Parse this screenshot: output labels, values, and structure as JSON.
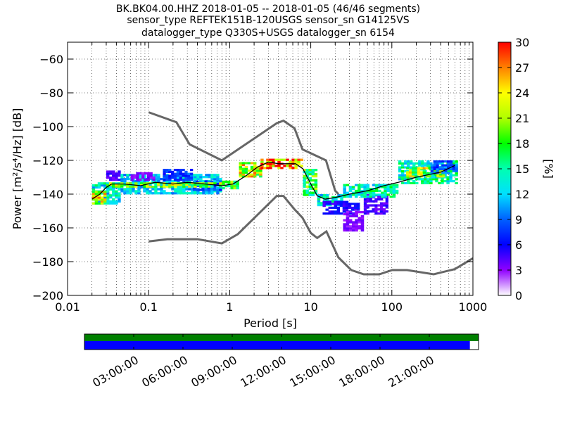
{
  "chart_data": {
    "type": "heatmap",
    "title_lines": [
      "BK.BK04.00.HHZ   2018-01-05 -- 2018-01-05  (46/46 segments)",
      "sensor_type REFTEK151B-120USGS sensor_sn G14125VS",
      "datalogger_type Q330S+USGS datalogger_sn 6154"
    ],
    "xlabel": "Period [s]",
    "ylabel": "Power [m²/s⁴/Hz] [dB]",
    "x_scale": "log",
    "xlim": [
      0.01,
      1000
    ],
    "ylim": [
      -200,
      -50
    ],
    "x_ticks": [
      {
        "value": 0.01,
        "label": "0.01"
      },
      {
        "value": 0.1,
        "label": "0.1"
      },
      {
        "value": 1,
        "label": "1"
      },
      {
        "value": 10,
        "label": "10"
      },
      {
        "value": 100,
        "label": "100"
      },
      {
        "value": 1000,
        "label": "1000"
      }
    ],
    "y_ticks": [
      {
        "value": -60,
        "label": "−60"
      },
      {
        "value": -80,
        "label": "−80"
      },
      {
        "value": -100,
        "label": "−100"
      },
      {
        "value": -120,
        "label": "−120"
      },
      {
        "value": -140,
        "label": "−140"
      },
      {
        "value": -160,
        "label": "−160"
      },
      {
        "value": -180,
        "label": "−180"
      },
      {
        "value": -200,
        "label": "−200"
      }
    ],
    "grid": "dotted",
    "colorbar": {
      "label": "[%]",
      "min": 0,
      "max": 30,
      "ticks": [
        {
          "value": 0,
          "label": "0"
        },
        {
          "value": 3,
          "label": "3"
        },
        {
          "value": 6,
          "label": "6"
        },
        {
          "value": 9,
          "label": "9"
        },
        {
          "value": 12,
          "label": "12"
        },
        {
          "value": 15,
          "label": "15"
        },
        {
          "value": 18,
          "label": "18"
        },
        {
          "value": 21,
          "label": "21"
        },
        {
          "value": 24,
          "label": "24"
        },
        {
          "value": 27,
          "label": "27"
        },
        {
          "value": 30,
          "label": "30"
        }
      ]
    },
    "noise_models": [
      {
        "id": "nhnm",
        "points": [
          [
            0.1,
            -91.5
          ],
          [
            0.22,
            -97.4
          ],
          [
            0.32,
            -110.5
          ],
          [
            0.8,
            -120
          ],
          [
            3.8,
            -98
          ],
          [
            4.6,
            -96.5
          ],
          [
            6.3,
            -101
          ],
          [
            7.9,
            -113.5
          ],
          [
            15.4,
            -120
          ],
          [
            20,
            -138
          ],
          [
            22,
            -140
          ]
        ]
      },
      {
        "id": "nlnm",
        "points": [
          [
            0.1,
            -168
          ],
          [
            0.17,
            -166.7
          ],
          [
            0.4,
            -166.7
          ],
          [
            0.8,
            -169.2
          ],
          [
            1.26,
            -163.7
          ],
          [
            3.8,
            -141.1
          ],
          [
            4.6,
            -141.1
          ],
          [
            6.3,
            -149
          ],
          [
            7.9,
            -154
          ],
          [
            10,
            -163
          ],
          [
            12,
            -166
          ],
          [
            15.6,
            -162.1
          ],
          [
            21.9,
            -177.5
          ],
          [
            31.6,
            -185
          ],
          [
            45,
            -187.5
          ],
          [
            70,
            -187.5
          ],
          [
            101,
            -185
          ],
          [
            154,
            -185
          ],
          [
            328,
            -187.5
          ],
          [
            600,
            -184.4
          ],
          [
            1000,
            -178
          ]
        ]
      }
    ],
    "median_curve": [
      [
        0.02,
        -143
      ],
      [
        0.025,
        -140
      ],
      [
        0.03,
        -136
      ],
      [
        0.035,
        -134
      ],
      [
        0.05,
        -134
      ],
      [
        0.08,
        -135
      ],
      [
        0.12,
        -133
      ],
      [
        0.2,
        -134
      ],
      [
        0.3,
        -133
      ],
      [
        0.5,
        -134
      ],
      [
        0.8,
        -135
      ],
      [
        1.1,
        -134
      ],
      [
        1.6,
        -129
      ],
      [
        2.2,
        -124
      ],
      [
        3,
        -121
      ],
      [
        4,
        -122
      ],
      [
        5,
        -122
      ],
      [
        6.5,
        -122
      ],
      [
        8,
        -125
      ],
      [
        10,
        -134
      ],
      [
        12,
        -141
      ],
      [
        15,
        -143
      ],
      [
        20,
        -142
      ],
      [
        30,
        -140
      ],
      [
        50,
        -138
      ],
      [
        80,
        -135
      ],
      [
        120,
        -133
      ],
      [
        200,
        -130
      ],
      [
        400,
        -127
      ],
      [
        600,
        -123
      ]
    ],
    "density_regions": [
      {
        "x": [
          0.02,
          0.045
        ],
        "y": [
          -146,
          -133
        ],
        "level": 12
      },
      {
        "x": [
          0.02,
          0.03
        ],
        "y": [
          -146,
          -138
        ],
        "level": 20
      },
      {
        "x": [
          0.03,
          0.045
        ],
        "y": [
          -132,
          -126
        ],
        "level": 4
      },
      {
        "x": [
          0.045,
          0.8
        ],
        "y": [
          -140,
          -128
        ],
        "level": 11
      },
      {
        "x": [
          0.06,
          0.12
        ],
        "y": [
          -132,
          -127
        ],
        "level": 3
      },
      {
        "x": [
          0.15,
          0.35
        ],
        "y": [
          -132,
          -125
        ],
        "level": 7
      },
      {
        "x": [
          0.35,
          0.8
        ],
        "y": [
          -138,
          -132
        ],
        "level": 8
      },
      {
        "x": [
          0.03,
          0.8
        ],
        "y": [
          -136,
          -133
        ],
        "level": 18
      },
      {
        "x": [
          0.8,
          1.3
        ],
        "y": [
          -137,
          -132
        ],
        "level": 16
      },
      {
        "x": [
          1.3,
          2.5
        ],
        "y": [
          -130,
          -121
        ],
        "level": 20
      },
      {
        "x": [
          2.4,
          8
        ],
        "y": [
          -125,
          -119
        ],
        "level": 25
      },
      {
        "x": [
          8,
          12
        ],
        "y": [
          -141,
          -125
        ],
        "level": 16
      },
      {
        "x": [
          12,
          25
        ],
        "y": [
          -147,
          -140
        ],
        "level": 12
      },
      {
        "x": [
          14,
          40
        ],
        "y": [
          -152,
          -144
        ],
        "level": 5
      },
      {
        "x": [
          25,
          45
        ],
        "y": [
          -162,
          -150
        ],
        "level": 3
      },
      {
        "x": [
          45,
          90
        ],
        "y": [
          -152,
          -140
        ],
        "level": 4
      },
      {
        "x": [
          25,
          120
        ],
        "y": [
          -142,
          -134
        ],
        "level": 13
      },
      {
        "x": [
          120,
          650
        ],
        "y": [
          -134,
          -120
        ],
        "level": 13
      },
      {
        "x": [
          150,
          450
        ],
        "y": [
          -130,
          -124
        ],
        "level": 19
      },
      {
        "x": [
          300,
          650
        ],
        "y": [
          -128,
          -120
        ],
        "level": 8
      }
    ]
  },
  "timeline": {
    "tick_labels": [
      "03:00:00",
      "06:00:00",
      "09:00:00",
      "12:00:00",
      "15:00:00",
      "18:00:00",
      "21:00:00"
    ],
    "tick_hours": [
      3,
      6,
      9,
      12,
      15,
      18,
      21
    ],
    "span_hours": 24,
    "data_coverage_fraction": 0.978,
    "colors": {
      "available": "#008000",
      "used": "#0000ff",
      "gap": "#ffffff"
    }
  }
}
